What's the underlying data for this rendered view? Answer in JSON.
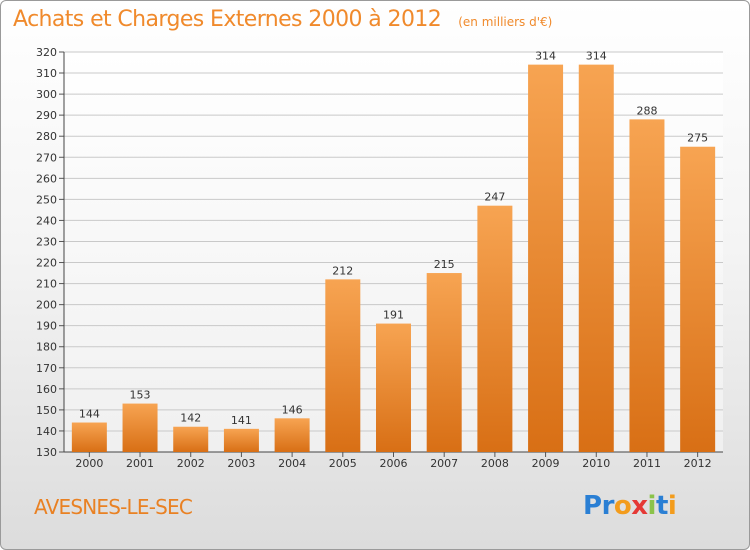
{
  "header": {
    "title": "Achats et Charges Externes 2000 à 2012",
    "subtitle": "(en milliers d'€)"
  },
  "footer": {
    "city": "AVESNES-LE-SEC",
    "brand": "Proxiti"
  },
  "colors": {
    "bar_light": "#f7a452",
    "bar_dark": "#d86f15",
    "title": "#f08a2c",
    "grid": "#c9c9c9"
  },
  "chart_data": {
    "type": "bar",
    "title": "Achats et Charges Externes 2000 à 2012",
    "subtitle": "(en milliers d'€)",
    "categories": [
      "2000",
      "2001",
      "2002",
      "2003",
      "2004",
      "2005",
      "2006",
      "2007",
      "2008",
      "2009",
      "2010",
      "2011",
      "2012"
    ],
    "values": [
      144,
      153,
      142,
      141,
      146,
      212,
      191,
      215,
      247,
      314,
      314,
      288,
      275
    ],
    "xlabel": "",
    "ylabel": "",
    "ylim": [
      130,
      320
    ],
    "yticks": [
      130,
      140,
      150,
      160,
      170,
      180,
      190,
      200,
      210,
      220,
      230,
      240,
      250,
      260,
      270,
      280,
      290,
      300,
      310,
      320
    ],
    "grid": true,
    "data_labels": true
  }
}
